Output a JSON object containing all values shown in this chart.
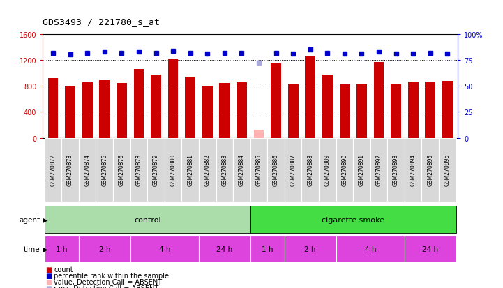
{
  "title": "GDS3493 / 221780_s_at",
  "samples": [
    "GSM270872",
    "GSM270873",
    "GSM270874",
    "GSM270875",
    "GSM270876",
    "GSM270878",
    "GSM270879",
    "GSM270880",
    "GSM270881",
    "GSM270882",
    "GSM270883",
    "GSM270884",
    "GSM270885",
    "GSM270886",
    "GSM270887",
    "GSM270888",
    "GSM270889",
    "GSM270890",
    "GSM270891",
    "GSM270892",
    "GSM270893",
    "GSM270894",
    "GSM270895",
    "GSM270896"
  ],
  "count_values": [
    920,
    790,
    860,
    890,
    850,
    1060,
    970,
    1210,
    940,
    800,
    840,
    860,
    null,
    1150,
    830,
    1260,
    970,
    820,
    820,
    1170,
    820,
    870,
    870,
    880
  ],
  "count_absent": [
    null,
    null,
    null,
    null,
    null,
    null,
    null,
    null,
    null,
    null,
    null,
    null,
    130,
    null,
    null,
    null,
    null,
    null,
    null,
    null,
    null,
    null,
    null,
    null
  ],
  "rank_values": [
    82,
    80,
    82,
    83,
    82,
    83,
    82,
    84,
    82,
    81,
    82,
    82,
    null,
    82,
    81,
    85,
    82,
    81,
    81,
    83,
    81,
    81,
    82,
    81
  ],
  "rank_absent": [
    null,
    null,
    null,
    null,
    null,
    null,
    null,
    null,
    null,
    null,
    null,
    null,
    72,
    null,
    null,
    null,
    null,
    null,
    null,
    null,
    null,
    null,
    null,
    null
  ],
  "ylim_left": [
    0,
    1600
  ],
  "ylim_right": [
    0,
    100
  ],
  "yticks_left": [
    0,
    400,
    800,
    1200,
    1600
  ],
  "yticks_right": [
    0,
    25,
    50,
    75,
    100
  ],
  "ytick_labels_left": [
    "0",
    "400",
    "800",
    "1200",
    "1600"
  ],
  "ytick_labels_right": [
    "0",
    "25",
    "50",
    "75",
    "100%"
  ],
  "grid_values": [
    400,
    800,
    1200
  ],
  "bar_color": "#cc0000",
  "bar_absent_color": "#ffb3b3",
  "rank_color": "#0000cc",
  "rank_absent_color": "#aaaadd",
  "bg_color": "#ffffff",
  "agent_control_color": "#aaddaa",
  "agent_smoke_color": "#44dd44",
  "time_color": "#dd44dd",
  "left_axis_color": "#cc0000",
  "right_axis_color": "#0000cc",
  "time_groups_control": [
    {
      "label": "1 h",
      "start": 0,
      "end": 2
    },
    {
      "label": "2 h",
      "start": 2,
      "end": 5
    },
    {
      "label": "4 h",
      "start": 5,
      "end": 9
    },
    {
      "label": "24 h",
      "start": 9,
      "end": 12
    }
  ],
  "time_groups_smoke": [
    {
      "label": "1 h",
      "start": 12,
      "end": 14
    },
    {
      "label": "2 h",
      "start": 14,
      "end": 17
    },
    {
      "label": "4 h",
      "start": 17,
      "end": 21
    },
    {
      "label": "24 h",
      "start": 21,
      "end": 24
    }
  ]
}
